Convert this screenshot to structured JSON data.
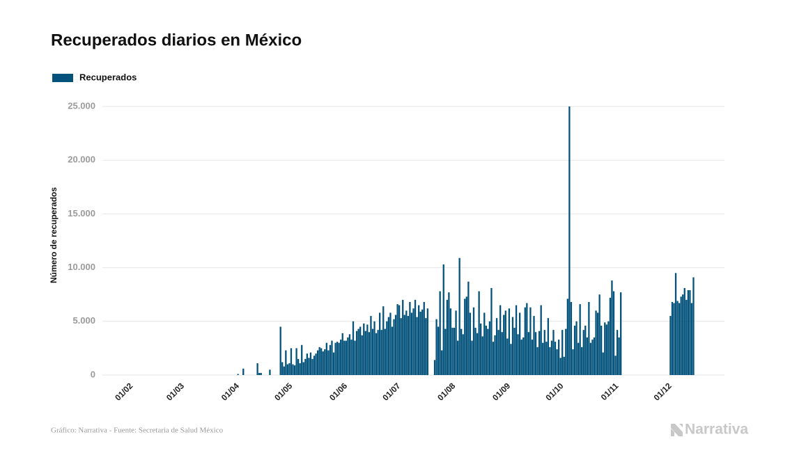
{
  "chart_data": {
    "type": "bar",
    "title": "Recuperados diarios en México",
    "y_label": "Número de recuperados",
    "source": "Gráfico: Narrativa - Fuente: Secretaria de Salud México",
    "logo": "Narrativa",
    "ylim": [
      0,
      25000
    ],
    "yticks": [
      0,
      {
        "value": 5000,
        "label": "5.000"
      },
      {
        "value": 10000,
        "label": "10.000"
      },
      {
        "value": 15000,
        "label": "15.000"
      },
      {
        "value": 20000,
        "label": "20.000"
      },
      {
        "value": 25000,
        "label": "25.000"
      }
    ],
    "grid": true,
    "categories": [
      null,
      null,
      null,
      null,
      null,
      null,
      null,
      null,
      null,
      null,
      null,
      null,
      null,
      null,
      null,
      null,
      "01/02",
      null,
      null,
      null,
      null,
      null,
      null,
      null,
      null,
      null,
      null,
      null,
      null,
      null,
      null,
      null,
      null,
      null,
      null,
      null,
      null,
      null,
      null,
      null,
      null,
      null,
      null,
      null,
      null,
      "01/03",
      null,
      null,
      null,
      null,
      null,
      null,
      null,
      null,
      null,
      null,
      null,
      null,
      null,
      null,
      null,
      null,
      null,
      null,
      null,
      null,
      null,
      null,
      null,
      null,
      null,
      null,
      null,
      null,
      null,
      null,
      "01/04",
      null,
      null,
      null,
      null,
      null,
      null,
      null,
      null,
      null,
      null,
      null,
      null,
      null,
      null,
      null,
      null,
      null,
      null,
      null,
      null,
      null,
      null,
      null,
      null,
      null,
      null,
      null,
      null,
      null,
      "01/05",
      null,
      null,
      null,
      null,
      null,
      null,
      null,
      null,
      null,
      null,
      null,
      null,
      null,
      null,
      null,
      null,
      null,
      null,
      null,
      null,
      null,
      null,
      null,
      null,
      null,
      null,
      null,
      null,
      null,
      null,
      "01/06",
      null,
      null,
      null,
      null,
      null,
      null,
      null,
      null,
      null,
      null,
      null,
      null,
      null,
      null,
      null,
      null,
      null,
      null,
      null,
      null,
      null,
      null,
      null,
      null,
      null,
      null,
      null,
      null,
      null,
      "01/07",
      null,
      null,
      null,
      null,
      null,
      null,
      null,
      null,
      null,
      null,
      null,
      null,
      null,
      null,
      null,
      null,
      null,
      null,
      null,
      null,
      null,
      null,
      null,
      null,
      null,
      null,
      null,
      null,
      null,
      null,
      "01/08",
      null,
      null,
      null,
      null,
      null,
      null,
      null,
      null,
      null,
      null,
      null,
      null,
      null,
      null,
      null,
      null,
      null,
      null,
      null,
      null,
      null,
      null,
      null,
      null,
      null,
      null,
      null,
      null,
      null,
      null,
      "01/09",
      null,
      null,
      null,
      null,
      null,
      null,
      null,
      null,
      null,
      null,
      null,
      null,
      null,
      null,
      null,
      null,
      null,
      null,
      null,
      null,
      null,
      null,
      null,
      null,
      null,
      null,
      null,
      null,
      null,
      "01/10",
      null,
      null,
      null,
      null,
      null,
      null,
      null,
      null,
      null,
      null,
      null,
      null,
      null,
      null,
      null,
      null,
      null,
      null,
      null,
      null,
      null,
      null,
      null,
      null,
      null,
      null,
      null,
      null,
      null,
      null,
      "01/11",
      null,
      null,
      null,
      null,
      null,
      null,
      null,
      null,
      null,
      null,
      null,
      null,
      null,
      null,
      null,
      null,
      null,
      null,
      null,
      null,
      null,
      null,
      null,
      null,
      null,
      null,
      null,
      null,
      null,
      "01/12",
      null,
      null,
      null,
      null,
      null,
      null,
      null,
      null,
      null,
      null,
      null,
      null,
      null,
      null,
      null,
      null,
      null,
      null,
      null,
      null,
      null,
      null,
      null,
      null,
      null,
      null,
      null,
      null,
      null,
      null
    ],
    "series": [
      {
        "name": "Recuperados",
        "color": "#03527b",
        "values": [
          0,
          0,
          0,
          0,
          0,
          0,
          0,
          0,
          0,
          0,
          0,
          0,
          0,
          0,
          0,
          0,
          0,
          0,
          0,
          0,
          0,
          0,
          0,
          0,
          0,
          0,
          0,
          0,
          0,
          0,
          0,
          0,
          0,
          0,
          0,
          0,
          0,
          0,
          0,
          0,
          0,
          0,
          0,
          0,
          0,
          0,
          0,
          0,
          0,
          0,
          0,
          0,
          0,
          0,
          0,
          0,
          0,
          0,
          0,
          0,
          0,
          0,
          0,
          0,
          0,
          0,
          0,
          0,
          0,
          0,
          0,
          0,
          0,
          0,
          0,
          0,
          100,
          0,
          0,
          600,
          0,
          0,
          0,
          0,
          0,
          0,
          0,
          1100,
          200,
          200,
          0,
          0,
          0,
          0,
          500,
          0,
          0,
          0,
          0,
          0,
          4500,
          1200,
          800,
          2300,
          1000,
          1100,
          2500,
          1000,
          900,
          2500,
          1500,
          1100,
          2800,
          1200,
          1500,
          2000,
          1600,
          2100,
          1500,
          1800,
          2000,
          2300,
          2600,
          2500,
          2200,
          2400,
          3000,
          2300,
          2800,
          3200,
          2100,
          3000,
          3100,
          3000,
          3300,
          3900,
          3200,
          3200,
          3500,
          3800,
          3300,
          5000,
          3200,
          4100,
          4300,
          4500,
          3700,
          4800,
          4100,
          4700,
          4000,
          5500,
          4300,
          5000,
          3900,
          4200,
          5800,
          4200,
          6400,
          4300,
          5000,
          5400,
          5800,
          4500,
          5200,
          5600,
          6600,
          6500,
          5300,
          7000,
          5600,
          6000,
          5500,
          6800,
          5800,
          6200,
          7000,
          5400,
          6500,
          5900,
          6100,
          6800,
          5300,
          6200,
          0,
          0,
          0,
          1400,
          5200,
          4500,
          7800,
          2300,
          10300,
          4300,
          7000,
          7700,
          6200,
          4400,
          4400,
          6000,
          3200,
          10900,
          4300,
          3800,
          7100,
          7300,
          8700,
          5800,
          3200,
          6300,
          4400,
          3900,
          7800,
          4800,
          3600,
          5800,
          4600,
          4300,
          5000,
          8100,
          3100,
          3700,
          5300,
          4200,
          6500,
          4000,
          5600,
          6000,
          3400,
          6200,
          2900,
          5400,
          4400,
          6500,
          3800,
          5800,
          3300,
          3500,
          6300,
          6700,
          4000,
          6300,
          3300,
          5500,
          4000,
          2600,
          4100,
          6500,
          3000,
          4200,
          3100,
          5300,
          2600,
          3200,
          4200,
          3100,
          2400,
          3300,
          1600,
          4200,
          1700,
          4300,
          7100,
          25000,
          6800,
          2400,
          4600,
          5000,
          3000,
          6600,
          2600,
          4200,
          4600,
          3500,
          6800,
          3000,
          3300,
          3500,
          6000,
          5800,
          7500,
          4600,
          2100,
          4900,
          4700,
          5000,
          7200,
          8800,
          7800,
          1800,
          4200,
          3500,
          7700,
          null,
          null,
          null,
          null,
          null,
          null,
          null,
          null,
          null,
          null,
          null,
          null,
          null,
          null,
          null,
          null,
          null,
          null,
          null,
          null,
          null,
          null,
          null,
          null,
          null,
          null,
          null,
          5500,
          6800,
          6700,
          9500,
          6900,
          6700,
          7300,
          7500,
          8100,
          7000,
          7900,
          7900,
          6700,
          9100,
          null,
          null,
          null,
          null,
          null,
          null,
          null,
          null,
          null,
          null,
          null,
          null,
          null,
          null,
          null,
          null,
          null
        ]
      }
    ]
  }
}
